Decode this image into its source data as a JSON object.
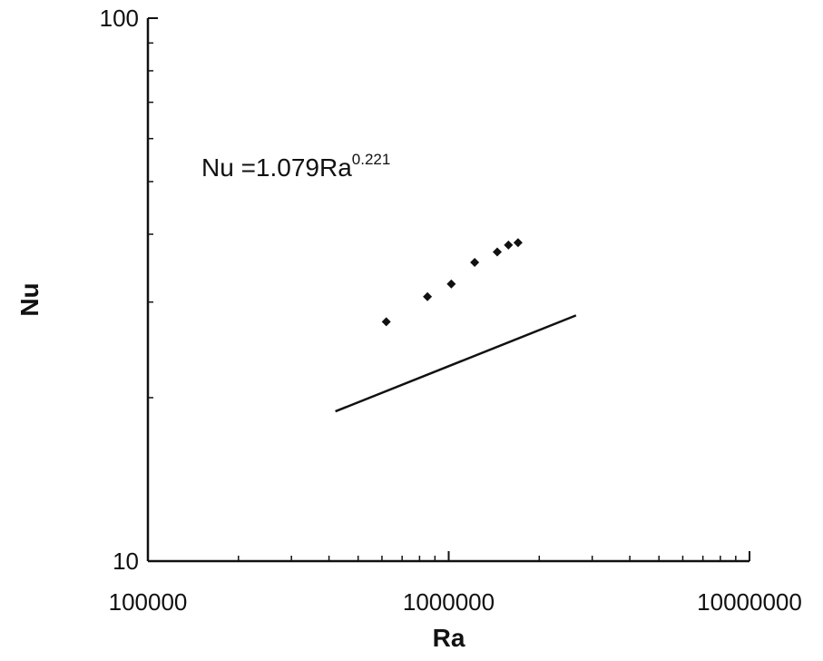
{
  "chart_data": {
    "type": "scatter",
    "title": "",
    "xlabel": "Ra",
    "ylabel": "Nu",
    "xscale": "log",
    "yscale": "log",
    "xlim": [
      100000,
      10000000
    ],
    "ylim": [
      10,
      100
    ],
    "x_ticks": [
      {
        "value": 100000,
        "label": "100000"
      },
      {
        "value": 1000000,
        "label": "1000000"
      },
      {
        "value": 10000000,
        "label": "10000000"
      }
    ],
    "y_ticks": [
      {
        "value": 10,
        "label": "10"
      },
      {
        "value": 100,
        "label": "100"
      }
    ],
    "grid": false,
    "series": [
      {
        "points": [
          {
            "x": 620000,
            "y": 27.6
          },
          {
            "x": 850000,
            "y": 30.7
          },
          {
            "x": 1020000,
            "y": 32.4
          },
          {
            "x": 1220000,
            "y": 35.5
          },
          {
            "x": 1450000,
            "y": 37.1
          },
          {
            "x": 1580000,
            "y": 38.2
          },
          {
            "x": 1700000,
            "y": 38.6
          }
        ],
        "color": "#111111",
        "marker": "diamond"
      }
    ],
    "fit_line": {
      "coefficient": 1.079,
      "exponent": 0.221,
      "x_range": [
        420000,
        2650000
      ],
      "color": "#111111"
    },
    "annotations": [
      {
        "text": "Nu =1.079Ra",
        "superscript": "0.221",
        "position": "upper-left"
      }
    ]
  }
}
